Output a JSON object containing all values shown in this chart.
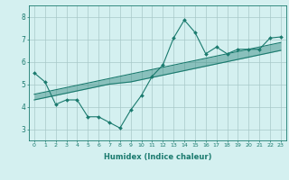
{
  "xlabel": "Humidex (Indice chaleur)",
  "x": [
    0,
    1,
    2,
    3,
    4,
    5,
    6,
    7,
    8,
    9,
    10,
    11,
    12,
    13,
    14,
    15,
    16,
    17,
    18,
    19,
    20,
    21,
    22,
    23
  ],
  "y_line": [
    5.5,
    5.1,
    4.1,
    4.3,
    4.3,
    3.55,
    3.55,
    3.3,
    3.05,
    3.85,
    4.5,
    5.35,
    5.85,
    7.05,
    7.85,
    7.3,
    6.35,
    6.65,
    6.35,
    6.55,
    6.55,
    6.55,
    7.05,
    7.1
  ],
  "y_upper": [
    4.55,
    4.65,
    4.75,
    4.85,
    4.95,
    5.05,
    5.15,
    5.25,
    5.35,
    5.45,
    5.55,
    5.65,
    5.75,
    5.85,
    5.95,
    6.05,
    6.15,
    6.25,
    6.35,
    6.45,
    6.55,
    6.65,
    6.75,
    6.85
  ],
  "y_lower": [
    4.3,
    4.4,
    4.5,
    4.6,
    4.7,
    4.8,
    4.9,
    5.0,
    5.05,
    5.1,
    5.2,
    5.3,
    5.4,
    5.5,
    5.6,
    5.7,
    5.8,
    5.9,
    6.0,
    6.1,
    6.2,
    6.3,
    6.4,
    6.5
  ],
  "line_color": "#1a7a6e",
  "fill_color": "#1a7a6e",
  "bg_color": "#d4f0f0",
  "grid_color": "#a8c8c8",
  "ylim": [
    2.5,
    8.5
  ],
  "xlim": [
    -0.5,
    23.5
  ],
  "yticks": [
    3,
    4,
    5,
    6,
    7,
    8
  ],
  "xticks": [
    0,
    1,
    2,
    3,
    4,
    5,
    6,
    7,
    8,
    9,
    10,
    11,
    12,
    13,
    14,
    15,
    16,
    17,
    18,
    19,
    20,
    21,
    22,
    23
  ]
}
